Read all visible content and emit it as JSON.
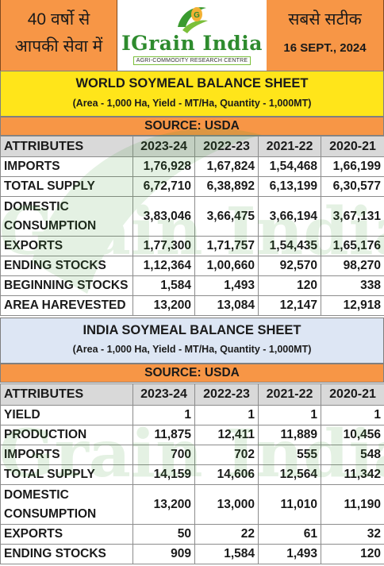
{
  "header": {
    "left_line1": "40 वर्षो से",
    "left_line2": "आपकी सेवा में",
    "logo_name": "IGrain India",
    "logo_tagline": "AGRI-COMMODITY RESEARCH CENTRE",
    "right_line1": "सबसे सटीक",
    "right_line2": "16 SEPT., 2024"
  },
  "colors": {
    "header_orange": "#f79646",
    "title_yellow": "#ffe51a",
    "title_lightblue": "#dde6f4",
    "header_row_gray": "#d9d9d9",
    "logo_green": "#2e8b2e"
  },
  "world": {
    "title": "WORLD SOYMEAL BALANCE SHEET",
    "subtitle": "(Area - 1,000 Ha, Yield - MT/Ha, Quantity - 1,000MT)",
    "source": "SOURCE: USDA",
    "columns": [
      "ATTRIBUTES",
      "2023-24",
      "2022-23",
      "2021-22",
      "2020-21"
    ],
    "rows": [
      {
        "label": "IMPORTS",
        "values": [
          "1,76,928",
          "1,67,824",
          "1,54,468",
          "1,66,199"
        ]
      },
      {
        "label": "TOTAL SUPPLY",
        "values": [
          "6,72,710",
          "6,38,892",
          "6,13,199",
          "6,30,577"
        ]
      },
      {
        "label": "DOMESTIC CONSUMPTION",
        "values": [
          "3,83,046",
          "3,66,475",
          "3,66,194",
          "3,67,131"
        ]
      },
      {
        "label": "EXPORTS",
        "values": [
          "1,77,300",
          "1,71,757",
          "1,54,435",
          "1,65,176"
        ]
      },
      {
        "label": "ENDING STOCKS",
        "values": [
          "1,12,364",
          "1,00,660",
          "92,570",
          "98,270"
        ]
      },
      {
        "label": "BEGINNING STOCKS",
        "values": [
          "1,584",
          "1,493",
          "120",
          "338"
        ]
      },
      {
        "label": "AREA HAREVESTED",
        "values": [
          "13,200",
          "13,084",
          "12,147",
          "12,918"
        ]
      }
    ]
  },
  "india": {
    "title": "INDIA SOYMEAL BALANCE SHEET",
    "subtitle": "(Area - 1,000 Ha, Yield - MT/Ha, Quantity - 1,000MT)",
    "source": "SOURCE: USDA",
    "columns": [
      "ATTRIBUTES",
      "2023-24",
      "2022-23",
      "2021-22",
      "2020-21"
    ],
    "rows": [
      {
        "label": "YIELD",
        "values": [
          "1",
          "1",
          "1",
          "1"
        ]
      },
      {
        "label": "PRODUCTION",
        "values": [
          "11,875",
          "12,411",
          "11,889",
          "10,456"
        ]
      },
      {
        "label": "IMPORTS",
        "values": [
          "700",
          "702",
          "555",
          "548"
        ]
      },
      {
        "label": "TOTAL SUPPLY",
        "values": [
          "14,159",
          "14,606",
          "12,564",
          "11,342"
        ]
      },
      {
        "label": "DOMESTIC CONSUMPTION",
        "values": [
          "13,200",
          "13,000",
          "11,010",
          "11,190"
        ]
      },
      {
        "label": "EXPORTS",
        "values": [
          "50",
          "22",
          "61",
          "32"
        ]
      },
      {
        "label": "ENDING STOCKS",
        "values": [
          "909",
          "1,584",
          "1,493",
          "120"
        ]
      }
    ]
  }
}
